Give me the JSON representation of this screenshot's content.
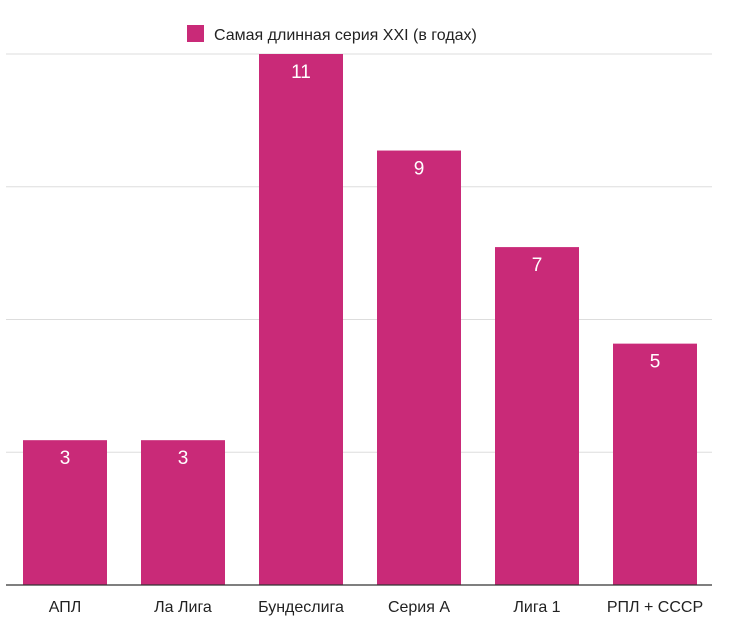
{
  "chart_data": {
    "type": "bar",
    "title": "",
    "xlabel": "",
    "ylabel": "",
    "categories": [
      "АПЛ",
      "Ла Лига",
      "Бундеслига",
      "Серия А",
      "Лига 1",
      "РПЛ + СССР"
    ],
    "series": [
      {
        "name": "Самая длинная серия XXI (в годах)",
        "values": [
          3,
          3,
          11,
          9,
          7,
          5
        ],
        "color": "#c92a78"
      }
    ],
    "ylim": [
      0,
      11
    ],
    "y_gridlines": [
      2.75,
      5.5,
      8.25,
      11
    ],
    "grid": true,
    "y_tick_labels_visible": false,
    "data_labels": true,
    "legend_position": "top"
  }
}
